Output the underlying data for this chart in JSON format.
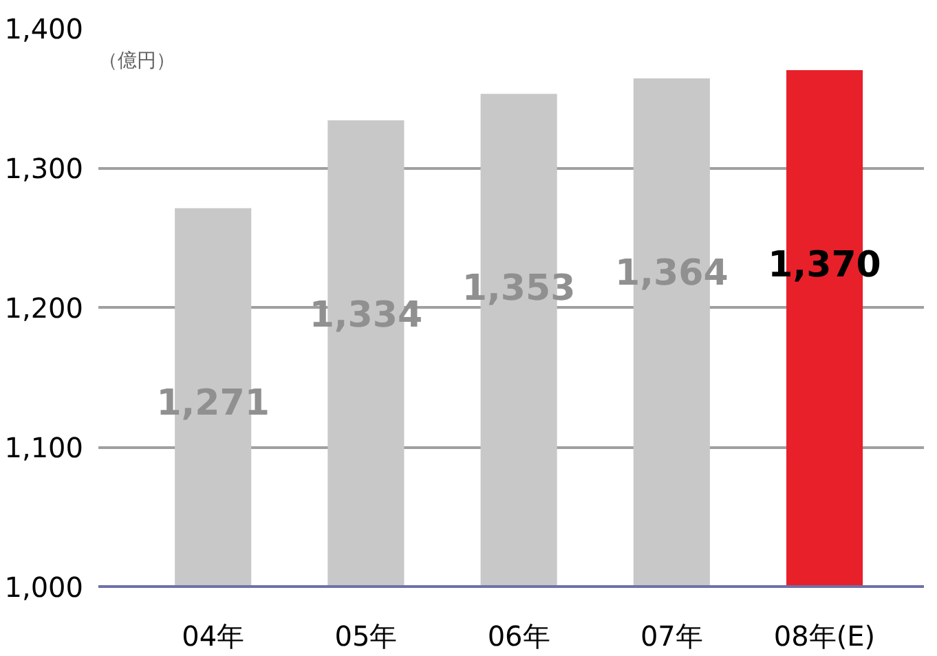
{
  "chart_data": {
    "type": "bar",
    "ylabel": "（億円）",
    "categories": [
      "04年",
      "05年",
      "06年",
      "07年",
      "08年(E)"
    ],
    "values": [
      1271,
      1334,
      1353,
      1364,
      1370
    ],
    "colors": [
      "#c8c8c8",
      "#c8c8c8",
      "#c8c8c8",
      "#c8c8c8",
      "#e8202a"
    ],
    "ylim": [
      1000,
      1400
    ],
    "yticks": [
      {
        "value": 1000,
        "label": "1,000"
      },
      {
        "value": 1100,
        "label": "1,100"
      },
      {
        "value": 1200,
        "label": "1,200"
      },
      {
        "value": 1300,
        "label": "1,300"
      },
      {
        "value": 1400,
        "label": "1,400"
      }
    ],
    "grid": "y",
    "value_labels": [
      "1,271",
      "1,334",
      "1,353",
      "1,364",
      "1,370"
    ]
  }
}
